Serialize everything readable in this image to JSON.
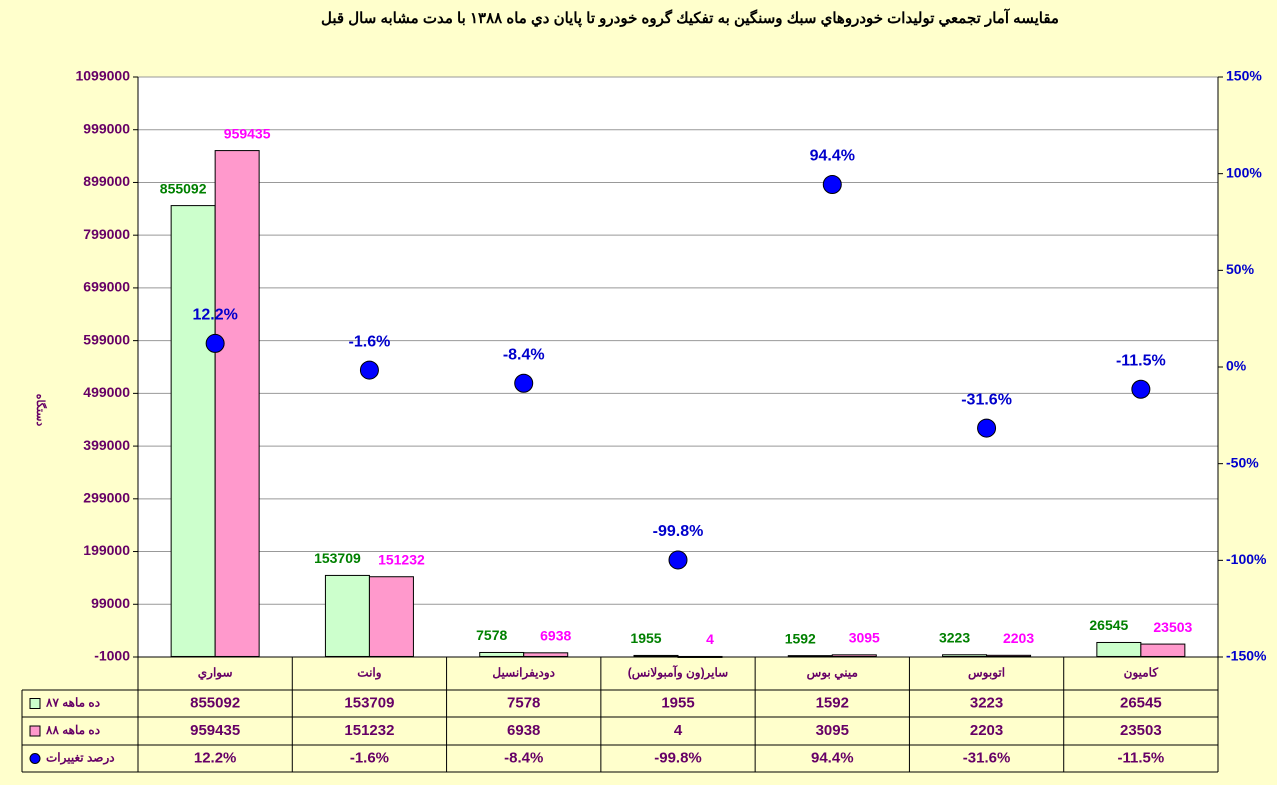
{
  "chart_data": {
    "type": "bar",
    "title": "مقايسه آمار تجمعي توليدات خودروهاي سبك وسنگين به تفكيك گروه خودرو تا پايان دي ماه ۱۳۸۸ با مدت مشابه سال قبل",
    "y_label": "دستگاه",
    "categories": [
      "سواري",
      "وانت",
      "دوديفرانسيل",
      "ساير(ون وآمبولانس)",
      "ميني بوس",
      "اتوبوس",
      "كاميون"
    ],
    "series": [
      {
        "name": "ده ماهه ۸۷",
        "type": "bar",
        "color": "#ccffcc",
        "label_color": "#008000",
        "values": [
          855092,
          153709,
          7578,
          1955,
          1592,
          3223,
          26545
        ]
      },
      {
        "name": "ده ماهه ۸۸",
        "type": "bar",
        "color": "#ff99cc",
        "label_color": "#ff00ff",
        "values": [
          959435,
          151232,
          6938,
          4,
          3095,
          2203,
          23503
        ]
      },
      {
        "name": "درصد تغييرات",
        "type": "scatter",
        "axis": "y2",
        "color": "#0000ff",
        "label_color": "#0000cc",
        "values": [
          12.2,
          -1.6,
          -8.4,
          -99.8,
          94.4,
          -31.6,
          -11.5
        ],
        "value_labels": [
          "12.2%",
          "-1.6%",
          "-8.4%",
          "-99.8%",
          "94.4%",
          "-31.6%",
          "-11.5%"
        ]
      }
    ],
    "ylim": [
      -1000,
      1099000
    ],
    "yticks": [
      -1000,
      99000,
      199000,
      299000,
      399000,
      499000,
      599000,
      699000,
      799000,
      899000,
      999000,
      1099000
    ],
    "y2lim": [
      -150,
      150
    ],
    "y2ticks": [
      {
        "value": -150,
        "label": "-150%"
      },
      {
        "value": -100,
        "label": "-100%"
      },
      {
        "value": -50,
        "label": "-50%"
      },
      {
        "value": 0,
        "label": "0%"
      },
      {
        "value": 50,
        "label": "50%"
      },
      {
        "value": 100,
        "label": "100%"
      },
      {
        "value": 150,
        "label": "150%"
      }
    ],
    "grid": true
  }
}
